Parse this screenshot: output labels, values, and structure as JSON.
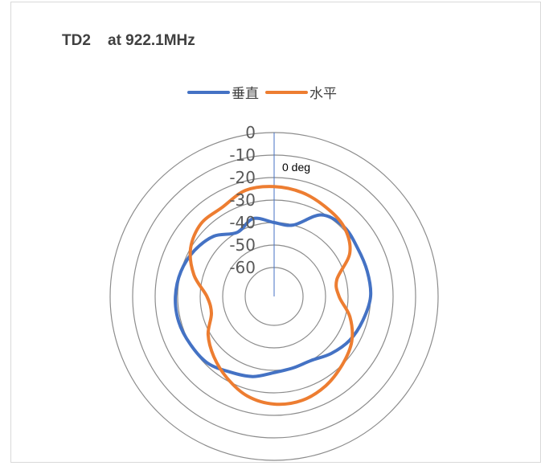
{
  "chart_data": {
    "type": "radar",
    "title": "TD2    at 922.1MHz",
    "legend_position": "top",
    "radial_axis": {
      "ticks": [
        "0",
        "-10",
        "-20",
        "-30",
        "-40",
        "-50",
        "-60"
      ],
      "min": -60,
      "max": 0
    },
    "angle_label": "0 deg",
    "grid": true,
    "series": [
      {
        "name": "垂直",
        "color": "#4472C4",
        "angles": [
          0,
          15,
          30,
          45,
          60,
          75,
          90,
          105,
          120,
          135,
          150,
          165,
          180,
          195,
          210,
          225,
          240,
          255,
          270,
          285,
          300,
          315,
          330,
          345
        ],
        "values": [
          -40,
          -40,
          -31,
          -29,
          -30,
          -30,
          -30,
          -32,
          -34,
          -37,
          -40,
          -40,
          -39,
          -36,
          -34,
          -31,
          -30,
          -29,
          -29,
          -30,
          -32,
          -35,
          -40,
          -37
        ]
      },
      {
        "name": "水平",
        "color": "#ED7D31",
        "angles": [
          0,
          15,
          30,
          45,
          60,
          75,
          90,
          105,
          120,
          135,
          150,
          165,
          180,
          195,
          210,
          225,
          240,
          255,
          270,
          285,
          300,
          315,
          330,
          345
        ],
        "values": [
          -24,
          -25,
          -27,
          -29,
          -34,
          -44,
          -44,
          -38,
          -33,
          -30,
          -27,
          -25,
          -25,
          -27,
          -31,
          -35,
          -39,
          -44,
          -43,
          -36,
          -30,
          -27,
          -27,
          -24
        ]
      }
    ]
  }
}
